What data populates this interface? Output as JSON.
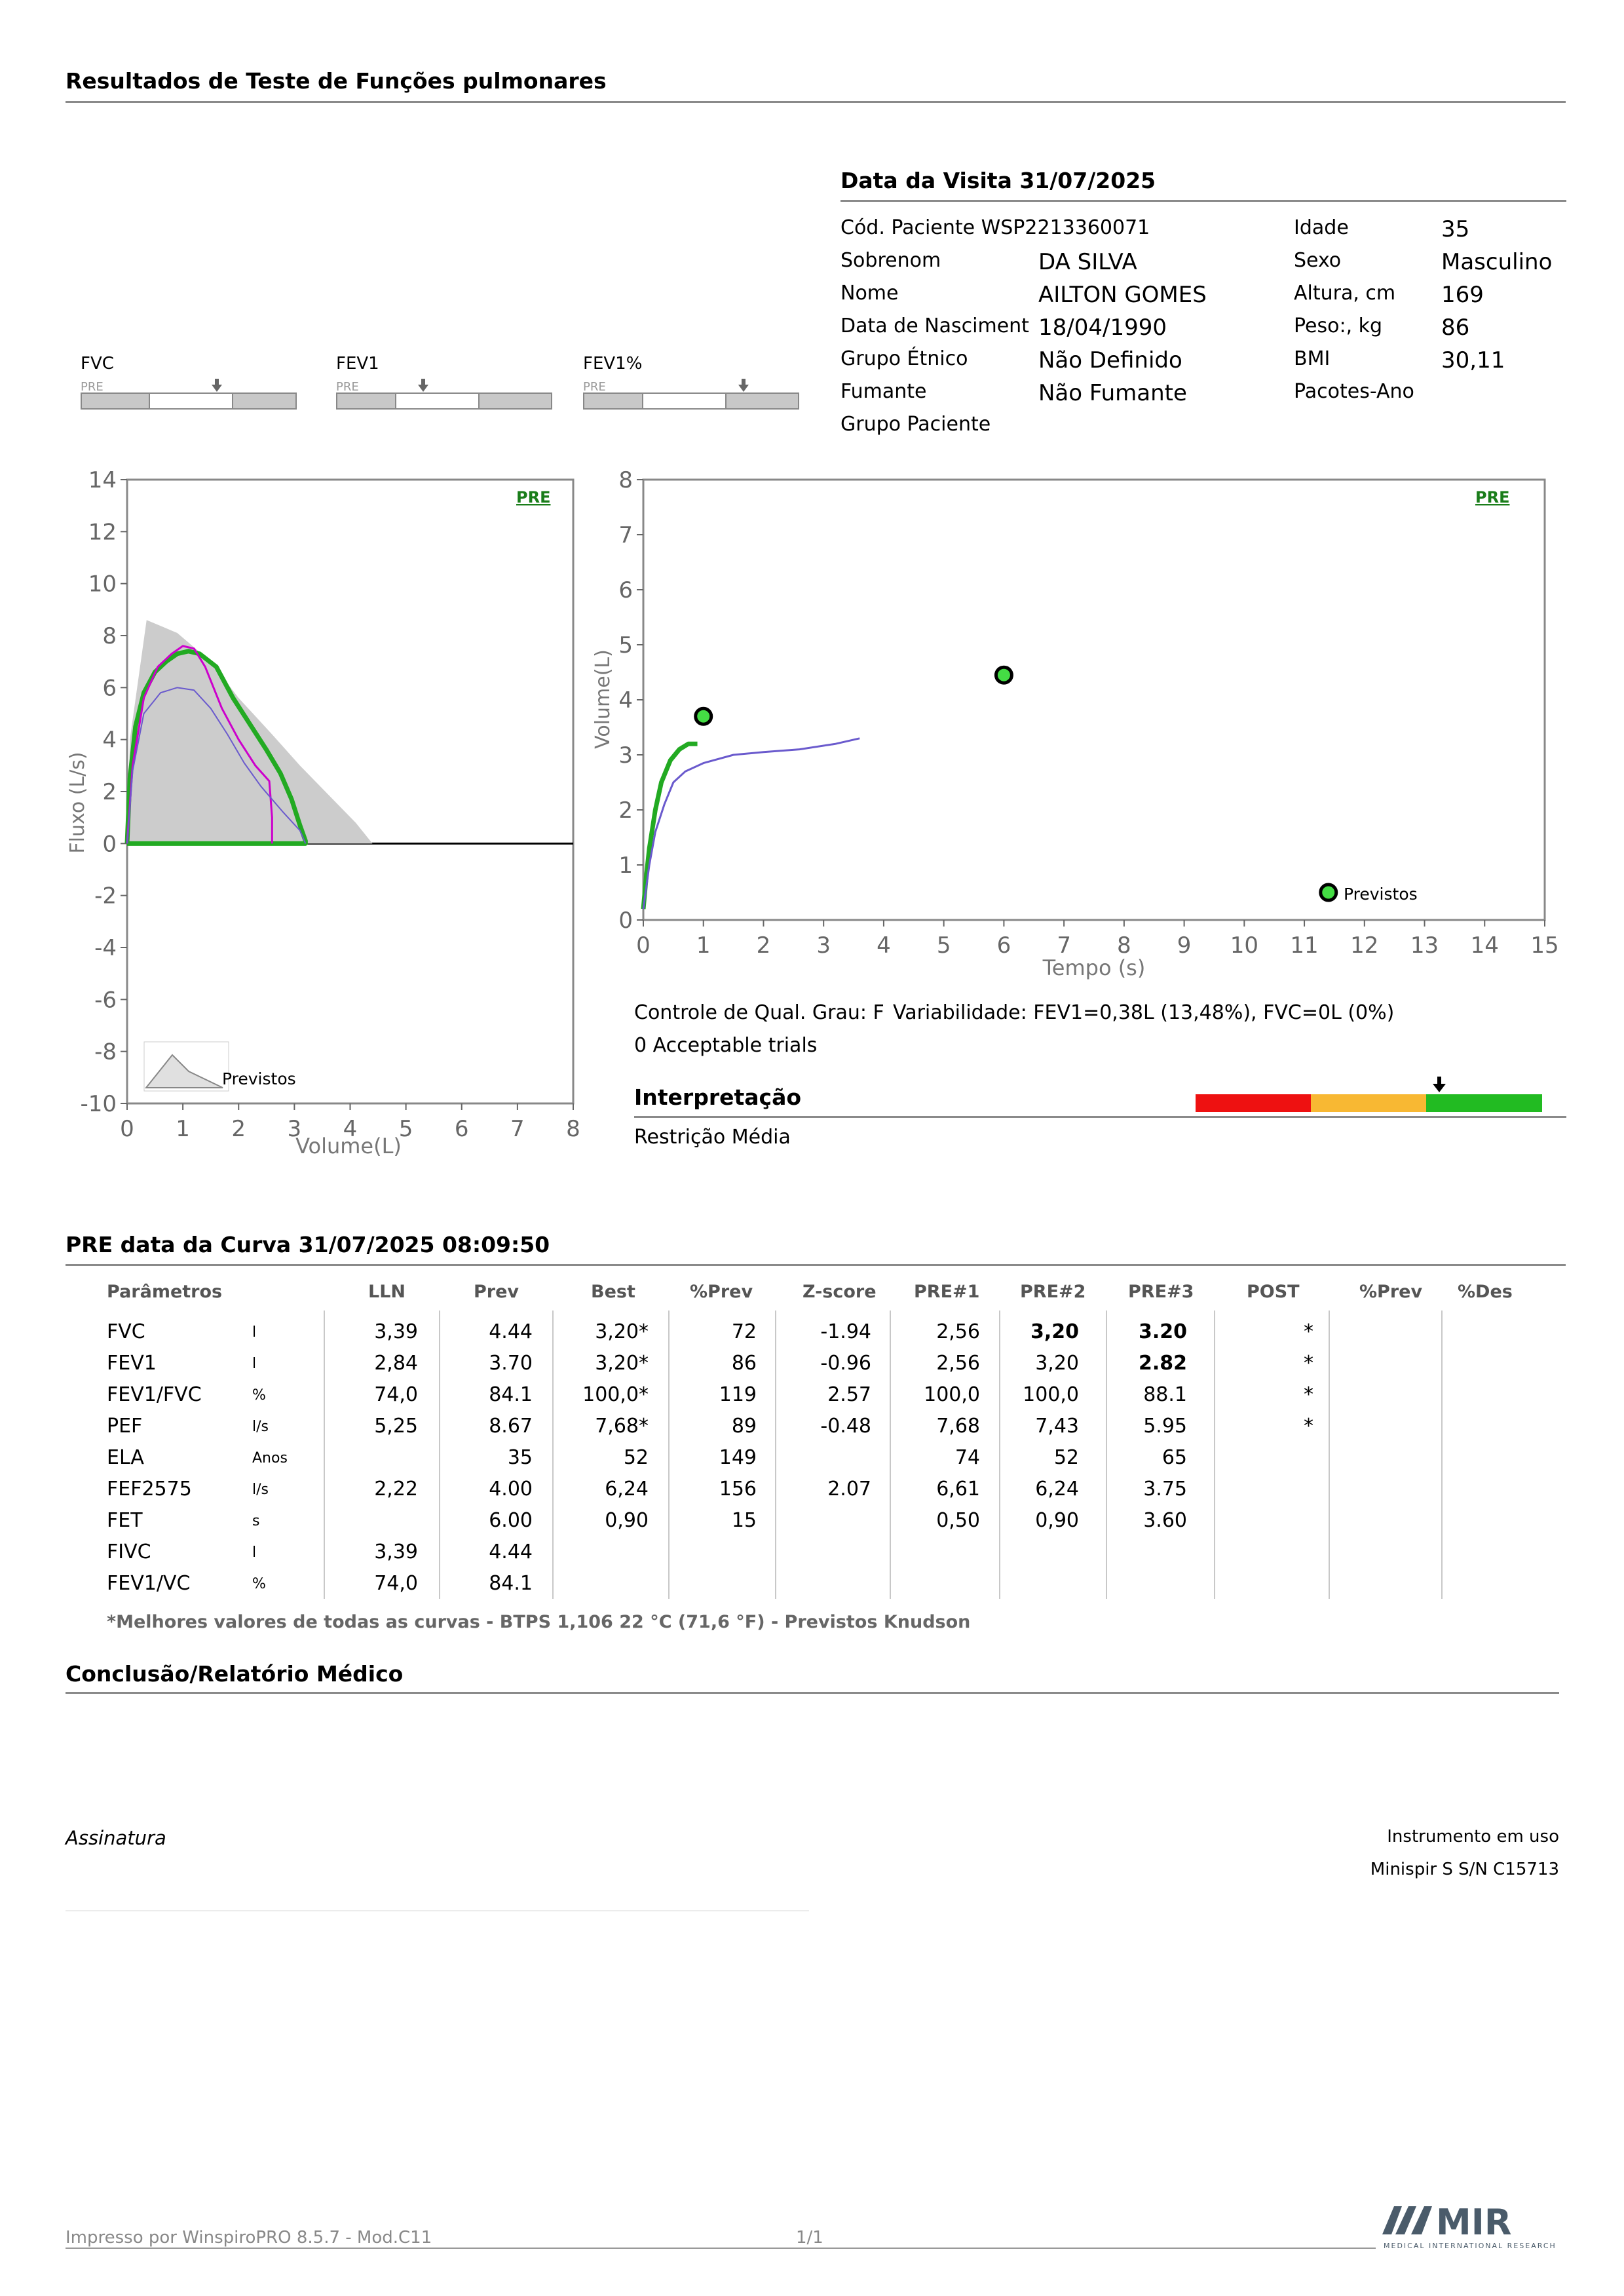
{
  "report_title": "Resultados de Teste de Funções pulmonares",
  "visit": {
    "title": "Data da Visita 31/07/2025",
    "left_fields": [
      {
        "label": "Cód. Paciente WSP2213360071",
        "value": ""
      },
      {
        "label": "Sobrenom",
        "value": "DA SILVA"
      },
      {
        "label": "Nome",
        "value": "AILTON GOMES"
      },
      {
        "label": "Data de Nasciment",
        "value": "18/04/1990"
      },
      {
        "label": "Grupo Étnico",
        "value": "Não Definido"
      },
      {
        "label": "Fumante",
        "value": "Não Fumante"
      },
      {
        "label": "Grupo Paciente",
        "value": ""
      }
    ],
    "right_fields": [
      {
        "label": "Idade",
        "value": "35"
      },
      {
        "label": "Sexo",
        "value": "Masculino"
      },
      {
        "label": "Altura, cm",
        "value": "169"
      },
      {
        "label": "Peso:, kg",
        "value": "86"
      },
      {
        "label": "BMI",
        "value": "30,11"
      },
      {
        "label": "Pacotes-Ano",
        "value": ""
      }
    ]
  },
  "indicators": [
    {
      "label": "FVC",
      "tag": "PRE"
    },
    {
      "label": "FEV1",
      "tag": "PRE"
    },
    {
      "label": "FEV1%",
      "tag": "PRE"
    }
  ],
  "flow_chart": {
    "pre_label": "PRE",
    "ylabel": "Fluxo (L/s)",
    "xlabel": "Volume(L)",
    "y_ticks": [
      "14",
      "12",
      "10",
      "8",
      "6",
      "4",
      "2",
      "0",
      "-2",
      "-4",
      "-6",
      "-8",
      "-10"
    ],
    "x_ticks": [
      "0",
      "1",
      "2",
      "3",
      "4",
      "5",
      "6",
      "7",
      "8"
    ],
    "legend": "Previstos"
  },
  "volume_chart": {
    "pre_label": "PRE",
    "ylabel": "Volume(L)",
    "xlabel": "Tempo (s)",
    "y_ticks": [
      "8",
      "7",
      "6",
      "5",
      "4",
      "3",
      "2",
      "1",
      "0"
    ],
    "x_ticks": [
      "0",
      "1",
      "2",
      "3",
      "4",
      "5",
      "6",
      "7",
      "8",
      "9",
      "10",
      "11",
      "12",
      "13",
      "14",
      "15"
    ],
    "legend": "Previstos"
  },
  "chart_data": [
    {
      "type": "line",
      "title": "",
      "xlabel": "Volume(L)",
      "ylabel": "Fluxo (L/s)",
      "xlim": [
        0,
        8
      ],
      "ylim": [
        -10,
        14
      ],
      "series": [
        {
          "color": "#22aa22",
          "x": [
            0,
            0.05,
            0.15,
            0.3,
            0.5,
            0.7,
            0.9,
            1.1,
            1.3,
            1.6,
            1.9,
            2.2,
            2.5,
            2.75,
            2.95,
            3.1,
            3.2,
            3.2,
            0
          ],
          "y": [
            0,
            2.5,
            4.5,
            5.8,
            6.6,
            7.0,
            7.3,
            7.4,
            7.3,
            6.8,
            5.6,
            4.6,
            3.6,
            2.7,
            1.7,
            0.7,
            0.1,
            0,
            0
          ]
        },
        {
          "color": "#cc00cc",
          "x": [
            0,
            0.1,
            0.3,
            0.55,
            0.8,
            1.0,
            1.2,
            1.4,
            1.7,
            2.0,
            2.3,
            2.55,
            2.6,
            2.6
          ],
          "y": [
            0,
            3.0,
            5.6,
            6.8,
            7.3,
            7.6,
            7.5,
            6.8,
            5.2,
            4.0,
            3.0,
            2.4,
            1.0,
            0
          ]
        },
        {
          "color": "#6a5acd",
          "x": [
            0,
            0.1,
            0.3,
            0.6,
            0.9,
            1.2,
            1.5,
            1.8,
            2.1,
            2.4,
            2.8,
            3.1,
            3.2
          ],
          "y": [
            0,
            2.8,
            5.0,
            5.8,
            6.0,
            5.9,
            5.2,
            4.2,
            3.1,
            2.2,
            1.2,
            0.5,
            0
          ]
        }
      ]
    },
    {
      "type": "line",
      "title": "",
      "xlabel": "Tempo (s)",
      "ylabel": "Volume(L)",
      "xlim": [
        0,
        15
      ],
      "ylim": [
        0,
        8
      ],
      "series": [
        {
          "color": "#22aa22",
          "x": [
            0,
            0.05,
            0.1,
            0.2,
            0.3,
            0.45,
            0.6,
            0.75,
            0.9
          ],
          "y": [
            0.2,
            0.8,
            1.3,
            2.0,
            2.5,
            2.9,
            3.1,
            3.2,
            3.2
          ]
        },
        {
          "color": "#6a5acd",
          "x": [
            0,
            0.1,
            0.2,
            0.35,
            0.5,
            0.7,
            1.0,
            1.5,
            2.0,
            2.6,
            3.2,
            3.6
          ],
          "y": [
            0.2,
            1.0,
            1.6,
            2.1,
            2.5,
            2.7,
            2.85,
            3.0,
            3.05,
            3.1,
            3.2,
            3.3
          ]
        }
      ],
      "points": [
        {
          "x": 1.0,
          "y": 3.7
        },
        {
          "x": 6.0,
          "y": 4.45
        },
        {
          "x": 11.4,
          "y": 0.5
        }
      ]
    }
  ],
  "quality": {
    "control": "Controle de Qual. Grau: F",
    "variability": "Variabilidade: FEV1=0,38L (13,48%), FVC=0L (0%)",
    "trials": "0 Acceptable trials"
  },
  "interpretation": {
    "title": "Interpretação",
    "text": "Restrição Média",
    "colors": [
      "#ee1111",
      "#f8b833",
      "#22bb22"
    ]
  },
  "curve": {
    "title": "PRE data da Curva 31/07/2025   08:09:50",
    "headers": [
      "Parâmetros",
      "LLN",
      "Prev",
      "Best",
      "%Prev",
      "Z-score",
      "PRE#1",
      "PRE#2",
      "PRE#3",
      "POST",
      "%Prev",
      "%Des"
    ],
    "rows": [
      {
        "param": "FVC",
        "unit": "l",
        "lln": "3,39",
        "prev": "4.44",
        "best": "3,20*",
        "pprev": "72",
        "z": "-1.94",
        "p1": "2,56",
        "p2": "3,20",
        "p3": "3.20",
        "post": "*",
        "pprev2": "",
        "pdes": ""
      },
      {
        "param": "FEV1",
        "unit": "l",
        "lln": "2,84",
        "prev": "3.70",
        "best": "3,20*",
        "pprev": "86",
        "z": "-0.96",
        "p1": "2,56",
        "p2": "3,20",
        "p3": "2.82",
        "post": "*",
        "pprev2": "",
        "pdes": ""
      },
      {
        "param": "FEV1/FVC",
        "unit": "%",
        "lln": "74,0",
        "prev": "84.1",
        "best": "100,0*",
        "pprev": "119",
        "z": "2.57",
        "p1": "100,0",
        "p2": "100,0",
        "p3": "88.1",
        "post": "*",
        "pprev2": "",
        "pdes": ""
      },
      {
        "param": "PEF",
        "unit": "l/s",
        "lln": "5,25",
        "prev": "8.67",
        "best": "7,68*",
        "pprev": "89",
        "z": "-0.48",
        "p1": "7,68",
        "p2": "7,43",
        "p3": "5.95",
        "post": "*",
        "pprev2": "",
        "pdes": ""
      },
      {
        "param": "ELA",
        "unit": "Anos",
        "lln": "",
        "prev": "35",
        "best": "52",
        "pprev": "149",
        "z": "",
        "p1": "74",
        "p2": "52",
        "p3": "65",
        "post": "",
        "pprev2": "",
        "pdes": ""
      },
      {
        "param": "FEF2575",
        "unit": "l/s",
        "lln": "2,22",
        "prev": "4.00",
        "best": "6,24",
        "pprev": "156",
        "z": "2.07",
        "p1": "6,61",
        "p2": "6,24",
        "p3": "3.75",
        "post": "",
        "pprev2": "",
        "pdes": ""
      },
      {
        "param": "FET",
        "unit": "s",
        "lln": "",
        "prev": "6.00",
        "best": "0,90",
        "pprev": "15",
        "z": "",
        "p1": "0,50",
        "p2": "0,90",
        "p3": "3.60",
        "post": "",
        "pprev2": "",
        "pdes": ""
      },
      {
        "param": "FIVC",
        "unit": "l",
        "lln": "3,39",
        "prev": "4.44",
        "best": "",
        "pprev": "",
        "z": "",
        "p1": "",
        "p2": "",
        "p3": "",
        "post": "",
        "pprev2": "",
        "pdes": ""
      },
      {
        "param": "FEV1/VC",
        "unit": "%",
        "lln": "74,0",
        "prev": "84.1",
        "best": "",
        "pprev": "",
        "z": "",
        "p1": "",
        "p2": "",
        "p3": "",
        "post": "",
        "pprev2": "",
        "pdes": ""
      }
    ],
    "footnote": "*Melhores valores de todas as curvas - BTPS  1,106  22 °C  (71,6 °F) - Previstos Knudson"
  },
  "conclusion_title": "Conclusão/Relatório Médico",
  "signature": "Assinatura",
  "instrument": {
    "label": "Instrumento em uso",
    "value": "Minispir S S/N C15713"
  },
  "footer": {
    "printed": "Impresso por WinspiroPRO  8.5.7 - Mod.C11",
    "page": "1/1"
  },
  "logo": {
    "brand": "MIR",
    "tagline": "MEDICAL INTERNATIONAL RESEARCH",
    "color": "#4a5b6a"
  }
}
